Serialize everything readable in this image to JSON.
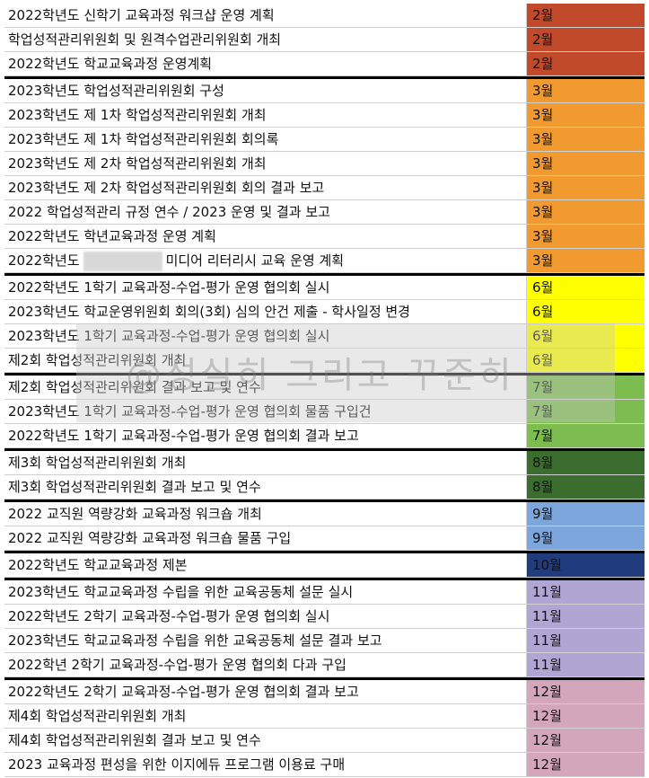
{
  "watermark": "@성실히 그리고 꾸준히",
  "groups": [
    {
      "color": "#c14a2b",
      "rows": [
        {
          "item": "2022학년도 신학기 교육과정 워크샵 운영 계획",
          "month": "2월"
        },
        {
          "item": "학업성적관리위원회 및 원격수업관리위원회 개최",
          "month": "2월"
        },
        {
          "item": "2022학년도 학교교육과정 운영계획",
          "month": "2월"
        }
      ]
    },
    {
      "color": "#f09a30",
      "rows": [
        {
          "item": "2023학년도 학업성적관리위원회 구성",
          "month": "3월"
        },
        {
          "item": "2023학년도 제 1차 학업성적관리위원회 개최",
          "month": "3월"
        },
        {
          "item": "2023학년도 제 1차 학업성적관리위원회 회의록",
          "month": "3월"
        },
        {
          "item": "2023학년도 제 2차 학업성적관리위원회 개최",
          "month": "3월"
        },
        {
          "item": "2023학년도 제 2차 학업성적관리위원회 회의 결과 보고",
          "month": "3월"
        },
        {
          "item": "2022 학업성적관리 규정 연수 / 2023 운영 및 결과 보고",
          "month": "3월"
        },
        {
          "item": "2022학년도 학년교육과정 운영 계획",
          "month": "3월"
        },
        {
          "item_parts": [
            "2022학년도",
            "미디어 리터리시 교육 운영 계획"
          ],
          "month": "3월"
        }
      ]
    },
    {
      "color": "#ffff00",
      "rows": [
        {
          "item": "2022학년도 1학기 교육과정-수업-평가 운영 협의회 실시",
          "month": "6월"
        },
        {
          "item": "2023학년도 학교운영위원회 회의(3회) 심의 안건 제출 - 학사일정 변경",
          "month": "6월"
        },
        {
          "item": "2023학년도 1학기 교육과정-수업-평가 운영 협의회 실시",
          "month": "6월"
        },
        {
          "item": "제2회 학업성적관리위원회 개최",
          "month": "6월"
        }
      ]
    },
    {
      "color": "#7dbd4f",
      "rows": [
        {
          "item": "제2회 학업성적관리위원회 결과 보고 및 연수",
          "month": "7월"
        },
        {
          "item": "2023학년도 1학기 교육과정-수업-평가 운영 협의회 물품 구입건",
          "month": "7월"
        },
        {
          "item": "2022학년도 1학기 교육과정-수업-평가 운영 협의회 결과 보고",
          "month": "7월"
        }
      ]
    },
    {
      "color": "#3b6e2e",
      "rows": [
        {
          "item": "제3회 학업성적관리위원회 개최",
          "month": "8월"
        },
        {
          "item": "제3회 학업성적관리위원회 결과 보고 및 연수",
          "month": "8월"
        }
      ]
    },
    {
      "color": "#7ca6dc",
      "rows": [
        {
          "item": "2022 교직원 역량강화 교육과정 워크숍 개최",
          "month": "9월"
        },
        {
          "item": "2022 교직원 역량강화 교육과정 워크숍 물품 구입",
          "month": "9월"
        }
      ]
    },
    {
      "color": "#203c7c",
      "rows": [
        {
          "item": "2022학년도 학교교육과정 제본",
          "month": "10월"
        }
      ]
    },
    {
      "color": "#b0a6d4",
      "rows": [
        {
          "item": "2023학년도 학교교육과정 수립을 위한 교육공동체 설문 실시",
          "month": "11월"
        },
        {
          "item": "2022학년도 2학기 교육과정-수업-평가 운영 협의회 실시",
          "month": "11월"
        },
        {
          "item": "2023학년도 학교교육과정 수립을 위한 교육공동체 설문 결과 보고",
          "month": "11월"
        },
        {
          "item": "2022학년 2학기 교육과정-수업-평가 운영 협의회 다과 구입",
          "month": "11월"
        }
      ]
    },
    {
      "color": "#d3a6bc",
      "rows": [
        {
          "item": "2022학년도 2학기 교육과정-수업-평가 운영 협의회 결과 보고",
          "month": "12월"
        },
        {
          "item": "제4회 학업성적관리위원회 개최",
          "month": "12월"
        },
        {
          "item": "제4회 학업성적관리위원회 결과 보고 및 연수",
          "month": "12월"
        },
        {
          "item": "2023 교육과정 편성을 위한 이지에듀 프로그램 이용료 구매",
          "month": "12월"
        }
      ]
    }
  ]
}
